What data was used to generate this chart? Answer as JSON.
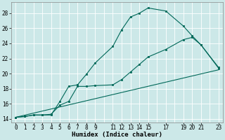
{
  "xlabel": "Humidex (Indice chaleur)",
  "bg_color": "#cce8e8",
  "grid_color": "#ffffff",
  "line_color": "#006858",
  "xlim": [
    -0.5,
    23.5
  ],
  "ylim": [
    13.5,
    29.5
  ],
  "xticks": [
    0,
    1,
    2,
    3,
    4,
    5,
    6,
    7,
    8,
    9,
    11,
    12,
    13,
    14,
    15,
    17,
    19,
    20,
    21,
    23
  ],
  "yticks": [
    14,
    16,
    18,
    20,
    22,
    24,
    26,
    28
  ],
  "series1_x": [
    0,
    1,
    2,
    3,
    4,
    5,
    6,
    7,
    8,
    9,
    11,
    12,
    13,
    14,
    15,
    17,
    19,
    20,
    21,
    23
  ],
  "series1_y": [
    14.2,
    14.3,
    14.5,
    14.5,
    14.5,
    16.3,
    18.3,
    18.5,
    19.9,
    21.4,
    23.6,
    25.8,
    27.5,
    28.0,
    28.7,
    28.3,
    26.3,
    25.0,
    23.8,
    20.7
  ],
  "series2_x": [
    0,
    1,
    2,
    3,
    4,
    5,
    6,
    7,
    8,
    9,
    11,
    12,
    13,
    14,
    15,
    17,
    19,
    20,
    21,
    23
  ],
  "series2_y": [
    14.2,
    14.3,
    14.5,
    14.5,
    14.6,
    15.8,
    16.3,
    18.3,
    18.3,
    18.4,
    18.5,
    19.2,
    20.2,
    21.2,
    22.2,
    23.2,
    24.5,
    24.8,
    23.8,
    20.8
  ],
  "series3_x": [
    0,
    23
  ],
  "series3_y": [
    14.2,
    20.5
  ],
  "marker_series1_x": [
    0,
    1,
    2,
    3,
    4,
    5,
    6,
    7,
    8,
    9,
    11,
    12,
    13,
    14,
    15,
    17,
    19,
    20,
    21,
    23
  ],
  "marker_series1_y": [
    14.2,
    14.3,
    14.5,
    14.5,
    14.5,
    16.3,
    18.3,
    18.5,
    19.9,
    21.4,
    23.6,
    25.8,
    27.5,
    28.0,
    28.7,
    28.3,
    26.3,
    25.0,
    23.8,
    20.7
  ],
  "marker_series2_x": [
    0,
    1,
    2,
    3,
    4,
    5,
    6,
    7,
    8,
    9,
    11,
    12,
    13,
    14,
    15,
    17,
    19,
    20,
    21,
    23
  ],
  "marker_series2_y": [
    14.2,
    14.3,
    14.5,
    14.5,
    14.6,
    15.8,
    16.3,
    18.3,
    18.3,
    18.4,
    18.5,
    19.2,
    20.2,
    21.2,
    22.2,
    23.2,
    24.5,
    24.8,
    23.8,
    20.8
  ]
}
